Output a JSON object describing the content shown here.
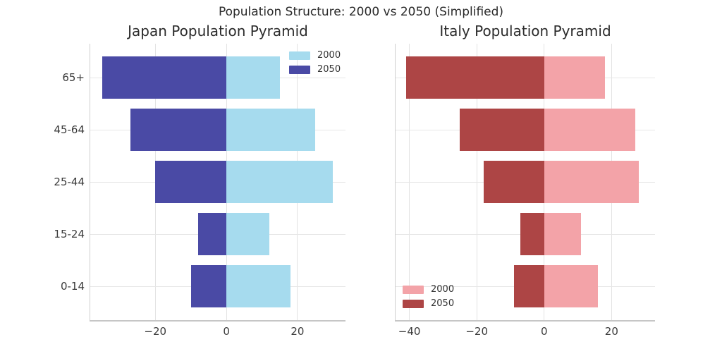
{
  "page": {
    "suptitle": "Population Structure: 2000 vs 2050 (Simplified)"
  },
  "colors": {
    "japan_2000": "#a6dbee",
    "japan_2050": "#4a4aa5",
    "italy_2000": "#f3a3a8",
    "italy_2050": "#ad4545",
    "gridline": "#e3e3e3",
    "tick_text": "#3a3a3a"
  },
  "chart_data": [
    {
      "type": "bar",
      "orientation": "horizontal",
      "title": "Japan Population Pyramid",
      "categories": [
        "65+",
        "45-64",
        "25-44",
        "15-24",
        "0-14"
      ],
      "series": [
        {
          "name": "2000",
          "color": "#a6dbee",
          "values": [
            15,
            25,
            30,
            12,
            18
          ]
        },
        {
          "name": "2050",
          "color": "#4a4aa5",
          "values": [
            -35,
            -27,
            -20,
            -8,
            -10
          ]
        }
      ],
      "xticks": [
        {
          "value": -20,
          "label": "−20"
        },
        {
          "value": 0,
          "label": "0"
        },
        {
          "value": 20,
          "label": "20"
        }
      ],
      "xlim": [
        -38.3,
        33.5
      ],
      "grid": true,
      "legend_position": "upper-right",
      "show_category_labels": true
    },
    {
      "type": "bar",
      "orientation": "horizontal",
      "title": "Italy Population Pyramid",
      "categories": [
        "65+",
        "45-64",
        "25-44",
        "15-24",
        "0-14"
      ],
      "series": [
        {
          "name": "2000",
          "color": "#f3a3a8",
          "values": [
            18,
            27,
            28,
            11,
            16
          ]
        },
        {
          "name": "2050",
          "color": "#ad4545",
          "values": [
            -41,
            -25,
            -18,
            -7,
            -9
          ]
        }
      ],
      "xticks": [
        {
          "value": -40,
          "label": "−40"
        },
        {
          "value": -20,
          "label": "−20"
        },
        {
          "value": 0,
          "label": "0"
        },
        {
          "value": 20,
          "label": "20"
        }
      ],
      "xlim": [
        -44.1,
        32.9
      ],
      "grid": true,
      "legend_position": "lower-left",
      "show_category_labels": false
    }
  ]
}
